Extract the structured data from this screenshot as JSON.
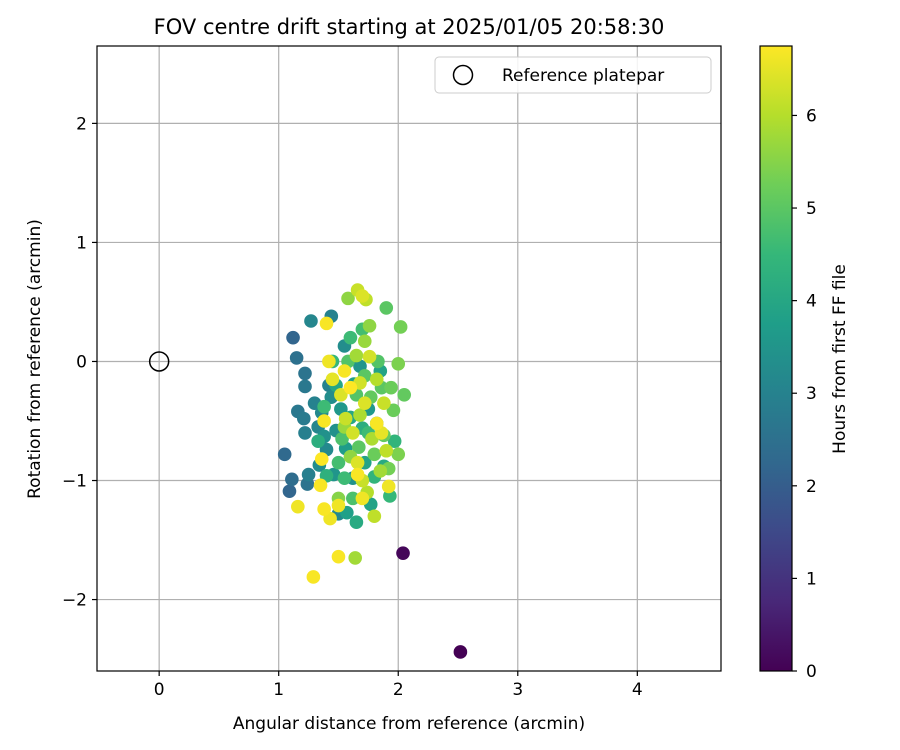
{
  "chart_data": {
    "type": "scatter",
    "title": "FOV centre drift starting at 2025/01/05 20:58:30",
    "xlabel": "Angular distance from reference (arcmin)",
    "ylabel": "Rotation from reference (arcmin)",
    "xlim": [
      -0.52,
      4.7
    ],
    "ylim": [
      -2.6,
      2.65
    ],
    "xticks": [
      0,
      1,
      2,
      3,
      4
    ],
    "yticks": [
      -2,
      -1,
      0,
      1,
      2
    ],
    "grid": true,
    "legend": {
      "position": "upper-right",
      "entries": [
        "Reference platepar"
      ]
    },
    "reference_point": {
      "label": "Reference platepar",
      "x": 0.0,
      "y": 0.0,
      "marker": "hollow-circle"
    },
    "colorbar": {
      "label": "Hours from first FF file",
      "range": [
        0,
        6.75
      ],
      "ticks": [
        0,
        1,
        2,
        3,
        4,
        5,
        6
      ],
      "colormap": "viridis",
      "colormap_stops": [
        "#440154",
        "#482878",
        "#3e4989",
        "#31688e",
        "#26828e",
        "#1f9e89",
        "#35b779",
        "#6ece58",
        "#b5de2b",
        "#fde725"
      ]
    },
    "points": [
      {
        "x": 2.52,
        "y": -2.44,
        "h": 0.0
      },
      {
        "x": 2.04,
        "y": -1.61,
        "h": 0.1
      },
      {
        "x": 1.12,
        "y": 0.2,
        "h": 2.2
      },
      {
        "x": 1.05,
        "y": -0.78,
        "h": 2.3
      },
      {
        "x": 1.09,
        "y": -1.09,
        "h": 2.2
      },
      {
        "x": 1.11,
        "y": -0.99,
        "h": 2.4
      },
      {
        "x": 1.15,
        "y": 0.03,
        "h": 2.5
      },
      {
        "x": 1.22,
        "y": -0.1,
        "h": 2.6
      },
      {
        "x": 1.22,
        "y": -0.21,
        "h": 2.7
      },
      {
        "x": 1.16,
        "y": -0.42,
        "h": 2.7
      },
      {
        "x": 1.21,
        "y": -0.48,
        "h": 2.8
      },
      {
        "x": 1.22,
        "y": -0.6,
        "h": 2.9
      },
      {
        "x": 1.25,
        "y": -0.95,
        "h": 2.9
      },
      {
        "x": 1.24,
        "y": -1.03,
        "h": 2.6
      },
      {
        "x": 1.27,
        "y": 0.34,
        "h": 3.1
      },
      {
        "x": 1.3,
        "y": -0.35,
        "h": 3.0
      },
      {
        "x": 1.33,
        "y": -0.55,
        "h": 3.1
      },
      {
        "x": 1.34,
        "y": -0.87,
        "h": 3.3
      },
      {
        "x": 1.36,
        "y": -0.43,
        "h": 3.2
      },
      {
        "x": 1.38,
        "y": -0.63,
        "h": 3.4
      },
      {
        "x": 1.4,
        "y": -0.74,
        "h": 3.2
      },
      {
        "x": 1.42,
        "y": -0.2,
        "h": 3.0
      },
      {
        "x": 1.44,
        "y": 0.38,
        "h": 3.0
      },
      {
        "x": 1.44,
        "y": -0.3,
        "h": 3.3
      },
      {
        "x": 1.46,
        "y": -0.95,
        "h": 3.5
      },
      {
        "x": 1.48,
        "y": -0.58,
        "h": 3.4
      },
      {
        "x": 1.5,
        "y": -1.28,
        "h": 3.2
      },
      {
        "x": 1.52,
        "y": -0.4,
        "h": 3.6
      },
      {
        "x": 1.55,
        "y": 0.13,
        "h": 3.3
      },
      {
        "x": 1.56,
        "y": -0.73,
        "h": 3.7
      },
      {
        "x": 1.57,
        "y": -1.27,
        "h": 3.8
      },
      {
        "x": 1.6,
        "y": -0.47,
        "h": 4.0
      },
      {
        "x": 1.62,
        "y": -0.98,
        "h": 3.4
      },
      {
        "x": 1.63,
        "y": -0.19,
        "h": 3.8
      },
      {
        "x": 1.65,
        "y": -1.35,
        "h": 4.1
      },
      {
        "x": 1.68,
        "y": -0.04,
        "h": 3.5
      },
      {
        "x": 1.7,
        "y": -0.56,
        "h": 4.2
      },
      {
        "x": 1.72,
        "y": -0.85,
        "h": 3.9
      },
      {
        "x": 1.75,
        "y": -0.4,
        "h": 3.6
      },
      {
        "x": 1.77,
        "y": -1.2,
        "h": 3.9
      },
      {
        "x": 1.8,
        "y": -0.97,
        "h": 4.4
      },
      {
        "x": 1.82,
        "y": -0.52,
        "h": 3.7
      },
      {
        "x": 1.85,
        "y": -0.08,
        "h": 3.9
      },
      {
        "x": 1.88,
        "y": -0.88,
        "h": 4.1
      },
      {
        "x": 1.93,
        "y": -1.13,
        "h": 4.5
      },
      {
        "x": 1.97,
        "y": -0.67,
        "h": 4.4
      },
      {
        "x": 1.33,
        "y": -0.67,
        "h": 4.2
      },
      {
        "x": 1.38,
        "y": -0.38,
        "h": 4.6
      },
      {
        "x": 1.4,
        "y": -0.96,
        "h": 4.3
      },
      {
        "x": 1.45,
        "y": 0.0,
        "h": 4.5
      },
      {
        "x": 1.48,
        "y": -0.2,
        "h": 4.0
      },
      {
        "x": 1.5,
        "y": -0.85,
        "h": 4.7
      },
      {
        "x": 1.53,
        "y": -0.65,
        "h": 4.8
      },
      {
        "x": 1.55,
        "y": -0.98,
        "h": 4.6
      },
      {
        "x": 1.58,
        "y": 0.0,
        "h": 4.9
      },
      {
        "x": 1.6,
        "y": 0.2,
        "h": 4.6
      },
      {
        "x": 1.62,
        "y": -1.15,
        "h": 4.8
      },
      {
        "x": 1.65,
        "y": -0.28,
        "h": 4.9
      },
      {
        "x": 1.67,
        "y": -0.72,
        "h": 5.0
      },
      {
        "x": 1.7,
        "y": 0.27,
        "h": 4.7
      },
      {
        "x": 1.72,
        "y": -0.12,
        "h": 5.0
      },
      {
        "x": 1.75,
        "y": -0.6,
        "h": 4.6
      },
      {
        "x": 1.77,
        "y": -0.3,
        "h": 5.1
      },
      {
        "x": 1.8,
        "y": -0.78,
        "h": 5.2
      },
      {
        "x": 1.83,
        "y": 0.0,
        "h": 4.9
      },
      {
        "x": 1.86,
        "y": -0.22,
        "h": 5.0
      },
      {
        "x": 1.88,
        "y": -0.62,
        "h": 5.1
      },
      {
        "x": 1.9,
        "y": 0.45,
        "h": 5.0
      },
      {
        "x": 1.92,
        "y": -0.9,
        "h": 5.3
      },
      {
        "x": 1.94,
        "y": -0.22,
        "h": 5.2
      },
      {
        "x": 1.96,
        "y": -0.41,
        "h": 5.2
      },
      {
        "x": 2.0,
        "y": -0.78,
        "h": 5.4
      },
      {
        "x": 2.02,
        "y": 0.29,
        "h": 5.3
      },
      {
        "x": 2.05,
        "y": -0.28,
        "h": 5.1
      },
      {
        "x": 2.0,
        "y": -0.02,
        "h": 5.4
      },
      {
        "x": 1.58,
        "y": 0.53,
        "h": 5.6
      },
      {
        "x": 1.64,
        "y": -1.65,
        "h": 5.8
      },
      {
        "x": 1.5,
        "y": -1.15,
        "h": 5.5
      },
      {
        "x": 1.55,
        "y": -0.55,
        "h": 5.7
      },
      {
        "x": 1.6,
        "y": -0.8,
        "h": 5.6
      },
      {
        "x": 1.65,
        "y": 0.05,
        "h": 5.8
      },
      {
        "x": 1.68,
        "y": -0.45,
        "h": 5.9
      },
      {
        "x": 1.72,
        "y": 0.17,
        "h": 5.7
      },
      {
        "x": 1.74,
        "y": -1.1,
        "h": 6.0
      },
      {
        "x": 1.76,
        "y": 0.3,
        "h": 5.6
      },
      {
        "x": 1.78,
        "y": -0.65,
        "h": 5.9
      },
      {
        "x": 1.8,
        "y": -1.3,
        "h": 6.1
      },
      {
        "x": 1.82,
        "y": -0.15,
        "h": 6.0
      },
      {
        "x": 1.85,
        "y": -0.92,
        "h": 5.8
      },
      {
        "x": 1.88,
        "y": -0.35,
        "h": 6.2
      },
      {
        "x": 1.9,
        "y": -0.75,
        "h": 6.1
      },
      {
        "x": 1.66,
        "y": 0.6,
        "h": 6.2
      },
      {
        "x": 1.7,
        "y": 0.55,
        "h": 6.4
      },
      {
        "x": 1.73,
        "y": 0.52,
        "h": 6.1
      },
      {
        "x": 1.68,
        "y": -0.18,
        "h": 6.3
      },
      {
        "x": 1.72,
        "y": -0.35,
        "h": 6.4
      },
      {
        "x": 1.76,
        "y": 0.04,
        "h": 6.3
      },
      {
        "x": 1.45,
        "y": -0.15,
        "h": 6.5
      },
      {
        "x": 1.52,
        "y": -0.28,
        "h": 6.4
      },
      {
        "x": 1.56,
        "y": -0.48,
        "h": 6.2
      },
      {
        "x": 1.62,
        "y": -0.6,
        "h": 6.3
      },
      {
        "x": 1.66,
        "y": -0.85,
        "h": 6.4
      },
      {
        "x": 1.7,
        "y": -1.0,
        "h": 6.2
      },
      {
        "x": 1.4,
        "y": 0.32,
        "h": 6.7
      },
      {
        "x": 1.29,
        "y": -1.81,
        "h": 6.7
      },
      {
        "x": 1.16,
        "y": -1.22,
        "h": 6.6
      },
      {
        "x": 1.38,
        "y": -1.24,
        "h": 6.7
      },
      {
        "x": 1.43,
        "y": -1.32,
        "h": 6.6
      },
      {
        "x": 1.5,
        "y": -1.64,
        "h": 6.7
      },
      {
        "x": 1.5,
        "y": -1.21,
        "h": 6.6
      },
      {
        "x": 1.35,
        "y": -1.04,
        "h": 6.7
      },
      {
        "x": 1.36,
        "y": -0.82,
        "h": 6.8
      },
      {
        "x": 1.38,
        "y": -0.5,
        "h": 6.7
      },
      {
        "x": 1.42,
        "y": 0.0,
        "h": 6.6
      },
      {
        "x": 1.55,
        "y": -0.08,
        "h": 6.7
      },
      {
        "x": 1.6,
        "y": -0.22,
        "h": 6.8
      },
      {
        "x": 1.66,
        "y": -0.95,
        "h": 6.7
      },
      {
        "x": 1.7,
        "y": -1.15,
        "h": 6.6
      },
      {
        "x": 1.82,
        "y": -0.52,
        "h": 6.7
      },
      {
        "x": 1.86,
        "y": -0.6,
        "h": 6.5
      },
      {
        "x": 1.92,
        "y": -1.05,
        "h": 6.6
      }
    ]
  }
}
